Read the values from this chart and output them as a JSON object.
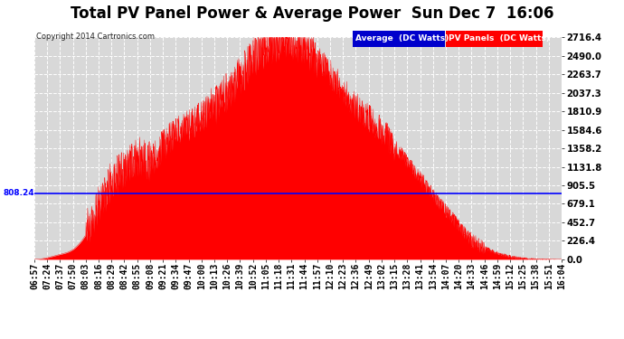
{
  "title": "Total PV Panel Power & Average Power  Sun Dec 7  16:06",
  "copyright": "Copyright 2014 Cartronics.com",
  "average_value": 808.24,
  "y_max": 2716.4,
  "y_ticks": [
    0.0,
    226.4,
    452.7,
    679.1,
    905.5,
    1131.8,
    1358.2,
    1584.6,
    1810.9,
    2037.3,
    2263.7,
    2490.0,
    2716.4
  ],
  "x_labels": [
    "06:57",
    "07:24",
    "07:37",
    "07:50",
    "08:03",
    "08:16",
    "08:29",
    "08:42",
    "08:55",
    "09:08",
    "09:21",
    "09:34",
    "09:47",
    "10:00",
    "10:13",
    "10:26",
    "10:39",
    "10:52",
    "11:05",
    "11:18",
    "11:31",
    "11:44",
    "11:57",
    "12:10",
    "12:23",
    "12:36",
    "12:49",
    "13:02",
    "13:15",
    "13:28",
    "13:41",
    "13:54",
    "14:07",
    "14:20",
    "14:33",
    "14:46",
    "14:59",
    "15:12",
    "15:25",
    "15:38",
    "15:51",
    "16:04"
  ],
  "background_color": "#ffffff",
  "plot_bg_color": "#d8d8d8",
  "grid_color": "#ffffff",
  "fill_color": "#ff0000",
  "line_color": "#0000ff",
  "legend_avg_bg": "#0000cc",
  "legend_pv_bg": "#ff0000",
  "title_fontsize": 12,
  "axis_fontsize": 7.0
}
